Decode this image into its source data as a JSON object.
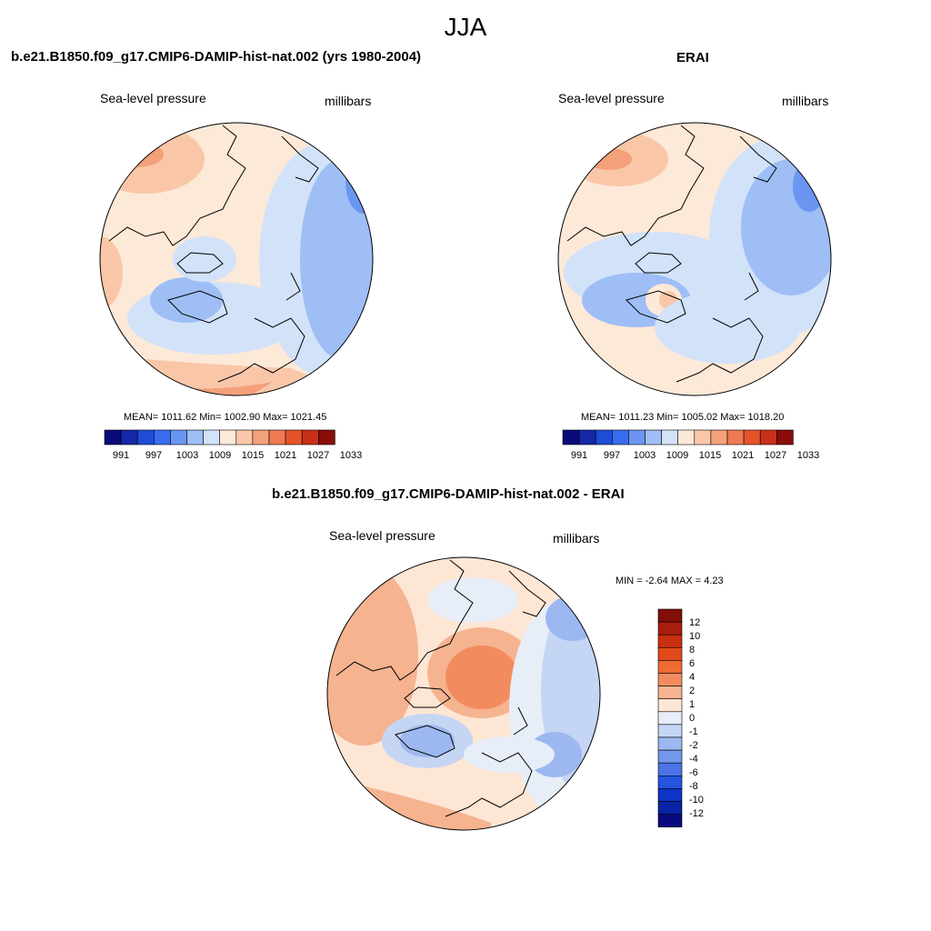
{
  "title": "JJA",
  "panels": {
    "model": {
      "title": "b.e21.B1850.f09_g17.CMIP6-DAMIP-hist-nat.002 (yrs 1980-2004)",
      "left_label": "Sea-level pressure",
      "right_label": "millibars",
      "stats": "MEAN= 1011.62  Min= 1002.90  Max= 1021.45",
      "mean": 1011.62,
      "min": 1002.9,
      "max": 1021.45
    },
    "obs": {
      "title": "ERAI",
      "left_label": "Sea-level pressure",
      "right_label": "millibars",
      "stats": "MEAN= 1011.23  Min= 1005.02  Max= 1018.20",
      "mean": 1011.23,
      "min": 1005.02,
      "max": 1018.2
    },
    "diff": {
      "title": "b.e21.B1850.f09_g17.CMIP6-DAMIP-hist-nat.002 - ERAI",
      "left_label": "Sea-level pressure",
      "right_label": "millibars",
      "stats": "MIN =  -2.64 MAX =   4.23",
      "min": -2.64,
      "max": 4.23
    }
  },
  "colorbars": {
    "slp": {
      "colors": [
        "#0a0a7a",
        "#1428a8",
        "#1e4cd6",
        "#3a6cf0",
        "#6a96f2",
        "#9ebef5",
        "#d2e2f8",
        "#fde9d8",
        "#f9c7a8",
        "#f4a07a",
        "#ee7a52",
        "#e6522a",
        "#c8301a",
        "#8a0d0a"
      ],
      "labels": [
        "991",
        "997",
        "1003",
        "1009",
        "1015",
        "1021",
        "1027",
        "1033"
      ]
    },
    "diff": {
      "colors": [
        "#830d08",
        "#a81d0b",
        "#c8300f",
        "#e34a19",
        "#f06a33",
        "#f28c5f",
        "#f6b38f",
        "#fde6d4",
        "#e8eef8",
        "#c5d5f4",
        "#9db8f0",
        "#7298ec",
        "#4a74e8",
        "#2454e0",
        "#0e34c8",
        "#0a22a4",
        "#0a0a80"
      ],
      "labels": [
        "12",
        "10",
        "8",
        "6",
        "4",
        "2",
        "1",
        "0",
        "-1",
        "-2",
        "-4",
        "-6",
        "-8",
        "-10",
        "-12"
      ]
    }
  }
}
